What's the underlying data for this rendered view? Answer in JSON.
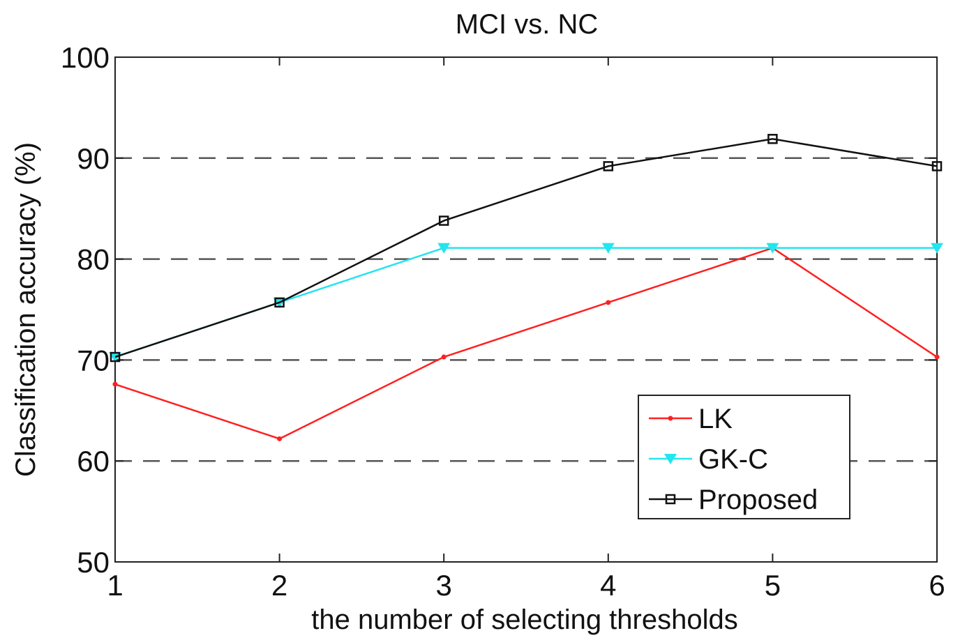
{
  "chart_data": {
    "type": "line",
    "title": "MCI vs. NC",
    "xlabel": "the number of selecting thresholds",
    "ylabel": "Classification accuracy (%)",
    "xlim": [
      1,
      6
    ],
    "ylim": [
      50,
      100
    ],
    "x": [
      1,
      2,
      3,
      4,
      5,
      6
    ],
    "xticks": [
      "1",
      "2",
      "3",
      "4",
      "5",
      "6"
    ],
    "yticks": [
      "50",
      "60",
      "70",
      "80",
      "90",
      "100"
    ],
    "ytick_values": [
      50,
      60,
      70,
      80,
      90,
      100
    ],
    "dashed_gridlines": [
      60,
      70,
      80,
      90
    ],
    "legend_position": "bottom-right",
    "series": [
      {
        "name": "LK",
        "color": "#ff2020",
        "marker": "dot",
        "values": [
          67.6,
          62.2,
          70.3,
          75.7,
          81.1,
          70.3
        ]
      },
      {
        "name": "GK-C",
        "color": "#22e5ee",
        "marker": "triangle-down",
        "values": [
          70.3,
          75.7,
          81.1,
          81.1,
          81.1,
          81.1
        ]
      },
      {
        "name": "Proposed",
        "color": "#111111",
        "marker": "square",
        "values": [
          70.3,
          75.7,
          83.8,
          89.2,
          91.9,
          89.2
        ]
      }
    ]
  }
}
